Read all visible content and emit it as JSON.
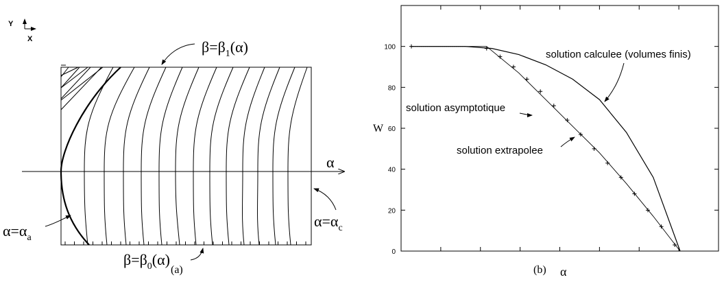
{
  "panel_a": {
    "caption": "(a)",
    "axis_y_label": "Y",
    "axis_x_label": "X",
    "alpha_axis_label": "α",
    "top_boundary": "β=β₁(α)",
    "bottom_boundary": "β=β₀(α)",
    "left_marker": "α=αₐ",
    "right_marker": "α=α꜀",
    "text": {
      "top_b1": "β=β",
      "top_sub": "1",
      "top_arg": "(α)",
      "bot_b1": "β=β",
      "bot_sub": "0",
      "bot_arg": "(α)",
      "left_a": "α=α",
      "left_sub": "a",
      "right_a": "α=α",
      "right_sub": "c"
    }
  },
  "panel_b": {
    "caption": "(b)",
    "chart_data": {
      "type": "line",
      "xlabel": "α",
      "ylabel": "W",
      "ylim": [
        0,
        120
      ],
      "yticks": [
        0,
        20,
        40,
        60,
        80,
        100
      ],
      "xrange": [
        0,
        1
      ],
      "grid": false,
      "series": [
        {
          "name": "solution calculee (volumes finis)",
          "style": "solid-line",
          "x": [
            0.0,
            0.1,
            0.2,
            0.3,
            0.4,
            0.5,
            0.6,
            0.7,
            0.8,
            0.9,
            1.0
          ],
          "values": [
            100,
            100,
            100,
            99,
            96,
            91,
            84,
            74,
            58,
            36,
            0
          ]
        },
        {
          "name": "solution asymptotique",
          "style": "thin-line",
          "x": [
            0.0,
            0.28,
            0.4,
            0.5,
            0.6,
            0.7,
            0.8,
            0.9,
            1.0
          ],
          "values": [
            100,
            100,
            87,
            74,
            61,
            48,
            33,
            17,
            0
          ]
        },
        {
          "name": "solution extrapolee",
          "style": "plus-markers",
          "x": [
            0.28,
            0.33,
            0.38,
            0.43,
            0.48,
            0.53,
            0.58,
            0.63,
            0.68,
            0.73,
            0.78,
            0.83,
            0.88,
            0.93,
            0.98
          ],
          "values": [
            99,
            95,
            90,
            84,
            78,
            71,
            64,
            57,
            50,
            43,
            36,
            28,
            20,
            12,
            3
          ]
        }
      ],
      "annotations": [
        "solution calculee (volumes finis)",
        "solution asymptotique",
        "solution extrapolee"
      ]
    }
  }
}
